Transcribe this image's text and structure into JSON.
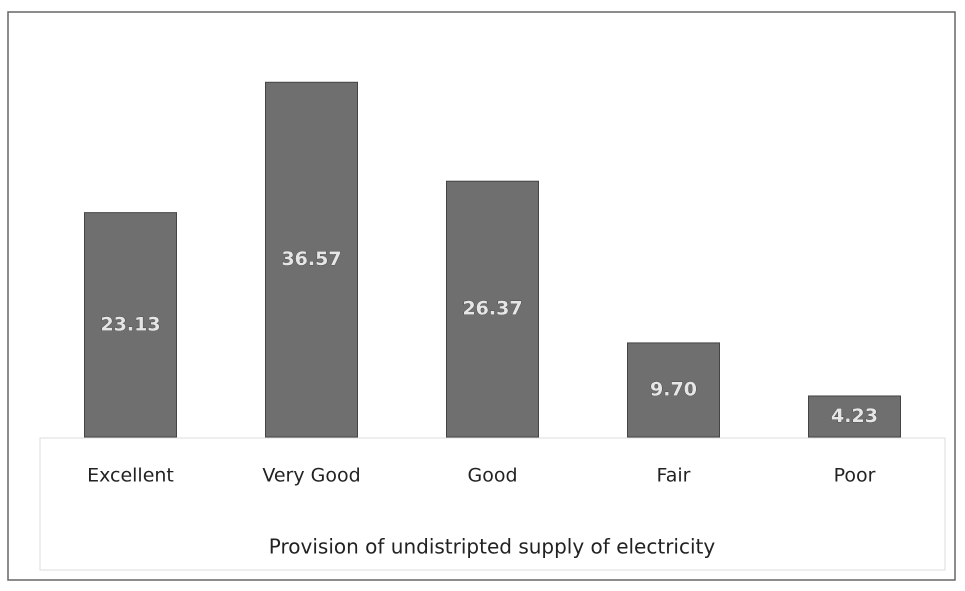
{
  "chart_data": {
    "type": "bar",
    "categories": [
      "Excellent",
      "Very Good",
      "Good",
      "Fair",
      "Poor"
    ],
    "values": [
      23.13,
      36.57,
      26.37,
      9.7,
      4.23
    ],
    "value_labels": [
      "23.13",
      "36.57",
      "26.37",
      "9.70",
      "4.23"
    ],
    "color": "#6f6f6f",
    "x_label": "Provision of undistripted supply of electricity",
    "ylim": [
      0,
      40
    ]
  }
}
